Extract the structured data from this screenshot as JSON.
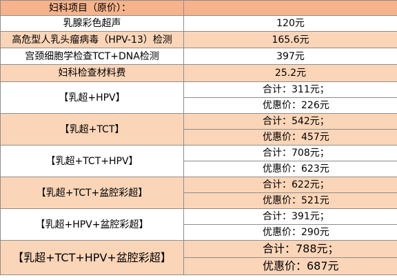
{
  "header": {
    "title": "妇科项目（原价）："
  },
  "items": [
    {
      "name": "乳腺彩色超声",
      "price": "120元"
    },
    {
      "name": "高危型人乳头瘤病毒（HPV-13）检测",
      "price": "165.6元"
    },
    {
      "name": "宫颈细胞学检查TCT+DNA检测",
      "price": "397元"
    },
    {
      "name": "妇科检查材料费",
      "price": "25.2元"
    }
  ],
  "packages": [
    {
      "name": "【乳超+HPV】",
      "total": "合计：311元；",
      "discount": "优惠价：226元"
    },
    {
      "name": "【乳超+TCT】",
      "total": "合计：542元；",
      "discount": "优惠价：457元"
    },
    {
      "name": "【乳超+TCT+HPV】",
      "total": "合计：708元；",
      "discount": "优惠价：623元"
    },
    {
      "name": "【乳超+TCT+盆腔彩超】",
      "total": "合计：622元；",
      "discount": "优惠价：521元"
    },
    {
      "name": "【乳超+HPV+盆腔彩超】",
      "total": "合计：391元；",
      "discount": "优惠价：290元"
    },
    {
      "name": "【乳超+TCT+HPV+盆腔彩超】",
      "total": "合计：788元；",
      "discount": "优惠价：687元"
    }
  ],
  "colors": {
    "header": "#f6b38c",
    "row_highlight": "#fbd5b8",
    "grid": "#8c8c8c"
  }
}
